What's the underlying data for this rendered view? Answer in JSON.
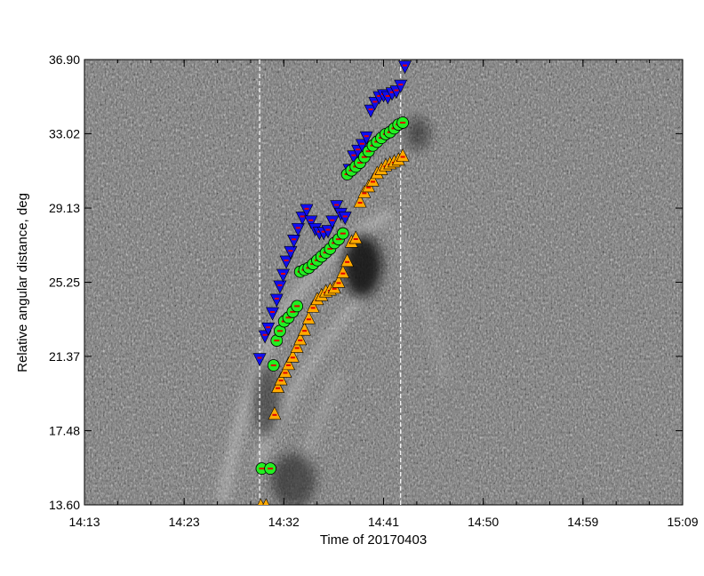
{
  "chart_data": {
    "type": "scatter",
    "background": "grayscale time-distance map (running-difference image)",
    "xlabel": "Time of 20170403",
    "ylabel": "Relative angular distance, deg",
    "x_ticks": [
      "14:13",
      "14:23",
      "14:32",
      "14:41",
      "14:50",
      "14:59",
      "15:09"
    ],
    "y_ticks": [
      "13.60",
      "17.48",
      "21.37",
      "25.25",
      "29.13",
      "33.02",
      "36.90"
    ],
    "xlim": [
      "14:13",
      "15:09"
    ],
    "ylim": [
      13.6,
      36.9
    ],
    "vertical_lines": [
      "14:29.4",
      "14:42.6"
    ],
    "vertical_line_style": "white dashed",
    "grid": false,
    "legend": "none",
    "series": [
      {
        "marker": "inverted triangle",
        "color": "#1010ee",
        "points": [
          [
            "14:29.4",
            21.2
          ],
          [
            "14:29.9",
            22.4
          ],
          [
            "14:30.2",
            22.8
          ],
          [
            "14:30.6",
            23.6
          ],
          [
            "14:31.0",
            24.3
          ],
          [
            "14:31.3",
            25.0
          ],
          [
            "14:31.6",
            25.6
          ],
          [
            "14:31.9",
            26.3
          ],
          [
            "14:32.3",
            26.8
          ],
          [
            "14:32.6",
            27.4
          ],
          [
            "14:33.0",
            28.0
          ],
          [
            "14:33.4",
            28.6
          ],
          [
            "14:33.8",
            29.0
          ],
          [
            "14:34.2",
            28.4
          ],
          [
            "14:34.6",
            28.0
          ],
          [
            "14:35.0",
            27.8
          ],
          [
            "14:35.4",
            27.8
          ],
          [
            "14:35.8",
            27.9
          ],
          [
            "14:36.2",
            28.4
          ],
          [
            "14:36.6",
            29.2
          ],
          [
            "14:37.0",
            28.8
          ],
          [
            "14:37.4",
            28.6
          ],
          [
            "14:37.8",
            31.1
          ],
          [
            "14:38.2",
            31.8
          ],
          [
            "14:38.6",
            32.1
          ],
          [
            "14:39.0",
            32.4
          ],
          [
            "14:39.4",
            32.8
          ],
          [
            "14:39.8",
            34.2
          ],
          [
            "14:40.2",
            34.6
          ],
          [
            "14:40.6",
            34.9
          ],
          [
            "14:41.0",
            35.0
          ],
          [
            "14:41.4",
            34.9
          ],
          [
            "14:41.8",
            35.1
          ],
          [
            "14:42.2",
            35.2
          ],
          [
            "14:42.6",
            35.5
          ],
          [
            "14:43.0",
            36.5
          ]
        ]
      },
      {
        "marker": "circle",
        "color": "#22ee22",
        "points": [
          [
            "14:29.6",
            15.5
          ],
          [
            "14:30.4",
            15.5
          ],
          [
            "14:30.7",
            20.9
          ],
          [
            "14:31.0",
            22.2
          ],
          [
            "14:31.3",
            22.7
          ],
          [
            "14:31.7",
            23.2
          ],
          [
            "14:32.1",
            23.4
          ],
          [
            "14:32.5",
            23.7
          ],
          [
            "14:32.9",
            24.0
          ],
          [
            "14:33.2",
            25.8
          ],
          [
            "14:33.6",
            25.9
          ],
          [
            "14:34.0",
            26.0
          ],
          [
            "14:34.4",
            26.2
          ],
          [
            "14:34.8",
            26.4
          ],
          [
            "14:35.2",
            26.6
          ],
          [
            "14:35.6",
            26.8
          ],
          [
            "14:36.0",
            27.0
          ],
          [
            "14:36.4",
            27.3
          ],
          [
            "14:36.8",
            27.5
          ],
          [
            "14:37.2",
            27.8
          ],
          [
            "14:37.6",
            30.9
          ],
          [
            "14:38.0",
            31.1
          ],
          [
            "14:38.4",
            31.3
          ],
          [
            "14:38.8",
            31.5
          ],
          [
            "14:39.2",
            31.8
          ],
          [
            "14:39.6",
            32.1
          ],
          [
            "14:40.0",
            32.4
          ],
          [
            "14:40.4",
            32.6
          ],
          [
            "14:40.8",
            32.8
          ],
          [
            "14:41.2",
            33.0
          ],
          [
            "14:41.6",
            33.1
          ],
          [
            "14:42.0",
            33.3
          ],
          [
            "14:42.4",
            33.5
          ],
          [
            "14:42.8",
            33.6
          ]
        ]
      },
      {
        "marker": "triangle",
        "color": "#ffaa00",
        "points": [
          [
            "14:29.5",
            13.6
          ],
          [
            "14:30.0",
            13.6
          ],
          [
            "14:30.8",
            18.4
          ],
          [
            "14:31.1",
            19.8
          ],
          [
            "14:31.4",
            20.2
          ],
          [
            "14:31.8",
            20.6
          ],
          [
            "14:32.1",
            21.0
          ],
          [
            "14:32.5",
            21.4
          ],
          [
            "14:32.9",
            21.9
          ],
          [
            "14:33.2",
            22.3
          ],
          [
            "14:33.6",
            22.8
          ],
          [
            "14:34.0",
            23.4
          ],
          [
            "14:34.4",
            24.0
          ],
          [
            "14:34.8",
            24.4
          ],
          [
            "14:35.2",
            24.6
          ],
          [
            "14:35.6",
            24.8
          ],
          [
            "14:36.0",
            24.9
          ],
          [
            "14:36.4",
            25.0
          ],
          [
            "14:36.8",
            25.3
          ],
          [
            "14:37.2",
            25.8
          ],
          [
            "14:37.6",
            26.4
          ],
          [
            "14:38.0",
            27.4
          ],
          [
            "14:38.4",
            27.6
          ],
          [
            "14:38.8",
            29.5
          ],
          [
            "14:39.2",
            30.0
          ],
          [
            "14:39.6",
            30.3
          ],
          [
            "14:40.0",
            30.6
          ],
          [
            "14:40.4",
            31.0
          ],
          [
            "14:40.8",
            31.2
          ],
          [
            "14:41.2",
            31.4
          ],
          [
            "14:41.6",
            31.5
          ],
          [
            "14:42.0",
            31.6
          ],
          [
            "14:42.4",
            31.7
          ],
          [
            "14:42.8",
            31.9
          ]
        ]
      }
    ]
  }
}
